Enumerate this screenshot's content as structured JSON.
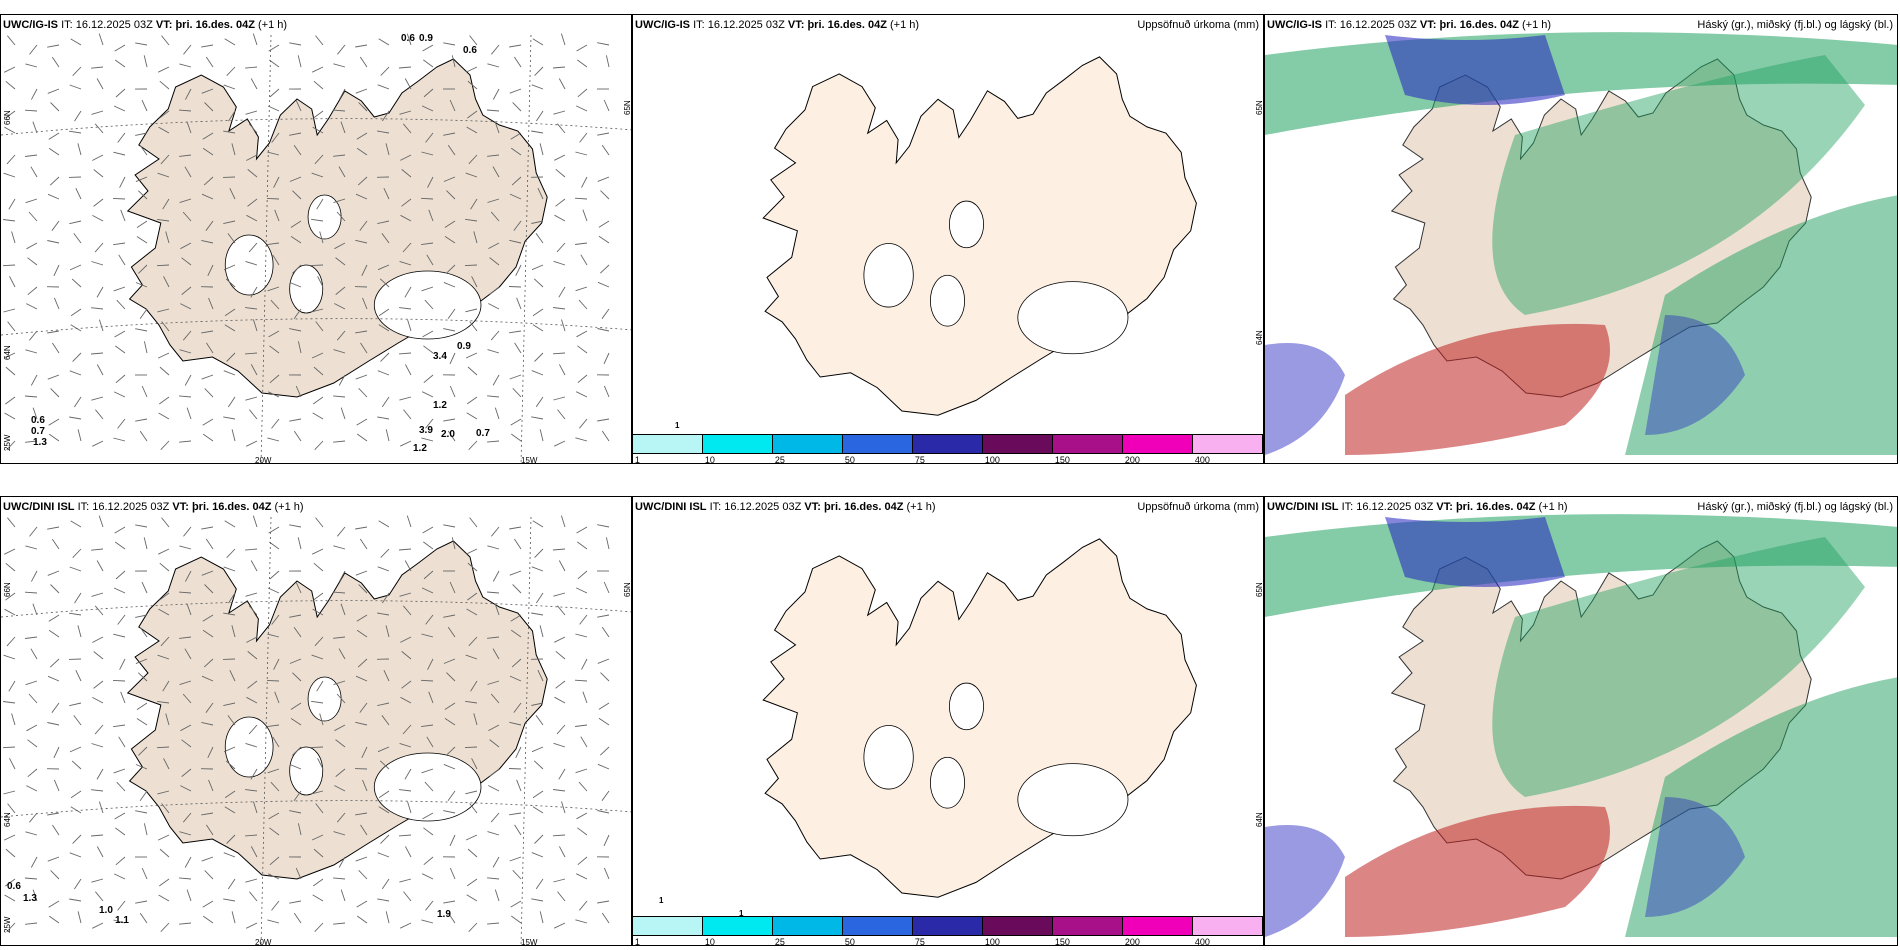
{
  "rows": [
    {
      "model": "UWC/IG-IS",
      "it_label": "IT:",
      "it_value": "16.12.2025 03Z",
      "vt_label": "VT:",
      "vt_value": "þri. 16.des. 04Z",
      "offset": "(+1 h)",
      "precip_title": "Uppsöfnuð úrkoma (mm)",
      "cloud_title": "Háský (gr.), miðský (fj.bl.) og lágský (bl.)",
      "wind_values": [
        "0.6",
        "0.7",
        "1.3",
        "1.2",
        "3.9",
        "2.0",
        "0.7",
        "1.2",
        "3.4",
        "0.9",
        "0.9",
        "0.6",
        "0.6"
      ],
      "precip_marks": [
        "1"
      ]
    },
    {
      "model": "UWC/DINI ISL",
      "it_label": "IT:",
      "it_value": "16.12.2025 03Z",
      "vt_label": "VT:",
      "vt_value": "þri. 16.des. 04Z",
      "offset": "(+1 h)",
      "precip_title": "Uppsöfnuð úrkoma (mm)",
      "cloud_title": "Háský (gr.), miðský (fj.bl.) og lágský (bl.)",
      "wind_values": [
        "0.6",
        "1.3",
        "1.0",
        "1.1",
        "1.9"
      ],
      "precip_marks": [
        "1",
        "1"
      ]
    }
  ],
  "map_labels": {
    "lat66": "66N",
    "lat64": "64N",
    "lat65": "65N",
    "lon25": "25W",
    "lon20": "20W",
    "lon15": "15W"
  },
  "colorbar": {
    "colors": [
      "#b8f5f5",
      "#00e8f0",
      "#00b8e8",
      "#2a66e0",
      "#2a2aa8",
      "#6a0a5a",
      "#a8108a",
      "#f000b8",
      "#f8b0f0"
    ],
    "ticks": [
      "1",
      "10",
      "25",
      "50",
      "75",
      "100",
      "150",
      "200",
      "400"
    ]
  },
  "colors": {
    "land": "#ede0d2",
    "land_precip": "#fdf0e3",
    "high_cloud": "#1fa060",
    "mid_cloud": "#c02020",
    "low_cloud": "#2020c0"
  }
}
